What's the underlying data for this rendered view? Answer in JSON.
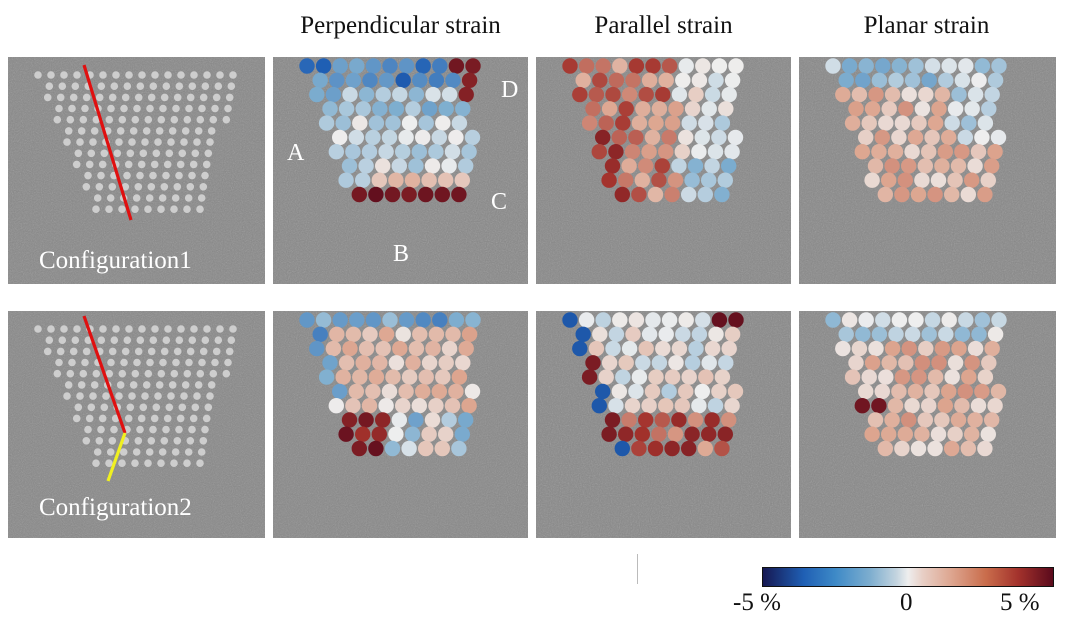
{
  "columns": {
    "perpendicular": "Perpendicular strain",
    "parallel": "Parallel strain",
    "planar": "Planar strain"
  },
  "labels": {
    "config1": "Configuration1",
    "config2": "Configuration2",
    "A": "A",
    "B": "B",
    "C": "C",
    "D": "D"
  },
  "colorbar": {
    "min_label": "-5 %",
    "mid_label": "0",
    "max_label": "5 %",
    "colors": [
      "#161852",
      "#1f5fb4",
      "#7eaecf",
      "#eeeeee",
      "#dda58f",
      "#a3322c",
      "#5a0a1c"
    ]
  },
  "colors": {
    "background_gray": "#8a8a8a",
    "config1_line": "#e01010",
    "config2_line_upper": "#e01010",
    "config2_line_lower": "#f0f020"
  }
}
